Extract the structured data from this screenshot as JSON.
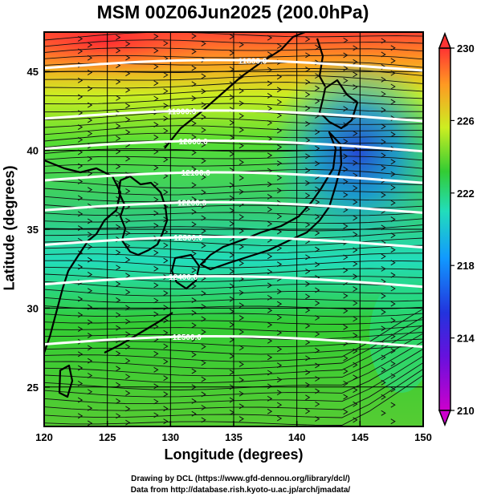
{
  "title": "MSM 00Z06Jun2025 (200.0hPa)",
  "xlabel": "Longitude (degrees)",
  "ylabel": "Latitude  (degrees)",
  "credit_line1": "Drawing by DCL (https://www.gfd-dennou.org/library/dcl/)",
  "credit_line2": "Data from http://database.rish.kyoto-u.ac.jp/arch/jmadata/",
  "chart_data": {
    "type": "heatmap",
    "x_range": [
      120,
      150
    ],
    "y_range": [
      22.5,
      47.5
    ],
    "x_ticks": [
      "120",
      "125",
      "130",
      "135",
      "140",
      "145",
      "150"
    ],
    "y_ticks": [
      "25",
      "30",
      "35",
      "40",
      "45"
    ],
    "grid": "on, every 5 degrees",
    "colorbar": {
      "range": [
        210,
        230
      ],
      "labels": [
        "230",
        "226",
        "222",
        "218",
        "214",
        "210"
      ],
      "colors": [
        "#cc00cc",
        "#2233dd",
        "#1199ff",
        "#22ddbb",
        "#33cc33",
        "#ccee22",
        "#ff9922",
        "#ff3333"
      ]
    },
    "contours": [
      {
        "label": "11800.0",
        "lon": 136.5,
        "lat": 45.7
      },
      {
        "label": "11900.0",
        "lon": 130.9,
        "lat": 42.5
      },
      {
        "label": "12000.0",
        "lon": 131.8,
        "lat": 40.6
      },
      {
        "label": "12100.0",
        "lon": 132.0,
        "lat": 38.6
      },
      {
        "label": "12200.0",
        "lon": 131.7,
        "lat": 36.7
      },
      {
        "label": "12300.0",
        "lon": 131.4,
        "lat": 34.5
      },
      {
        "label": "12400.0",
        "lon": 131.0,
        "lat": 32.0
      },
      {
        "label": "12500.0",
        "lon": 131.3,
        "lat": 28.2
      }
    ],
    "wind": "streamlines, mostly westerly; strongest near 30-45N"
  }
}
